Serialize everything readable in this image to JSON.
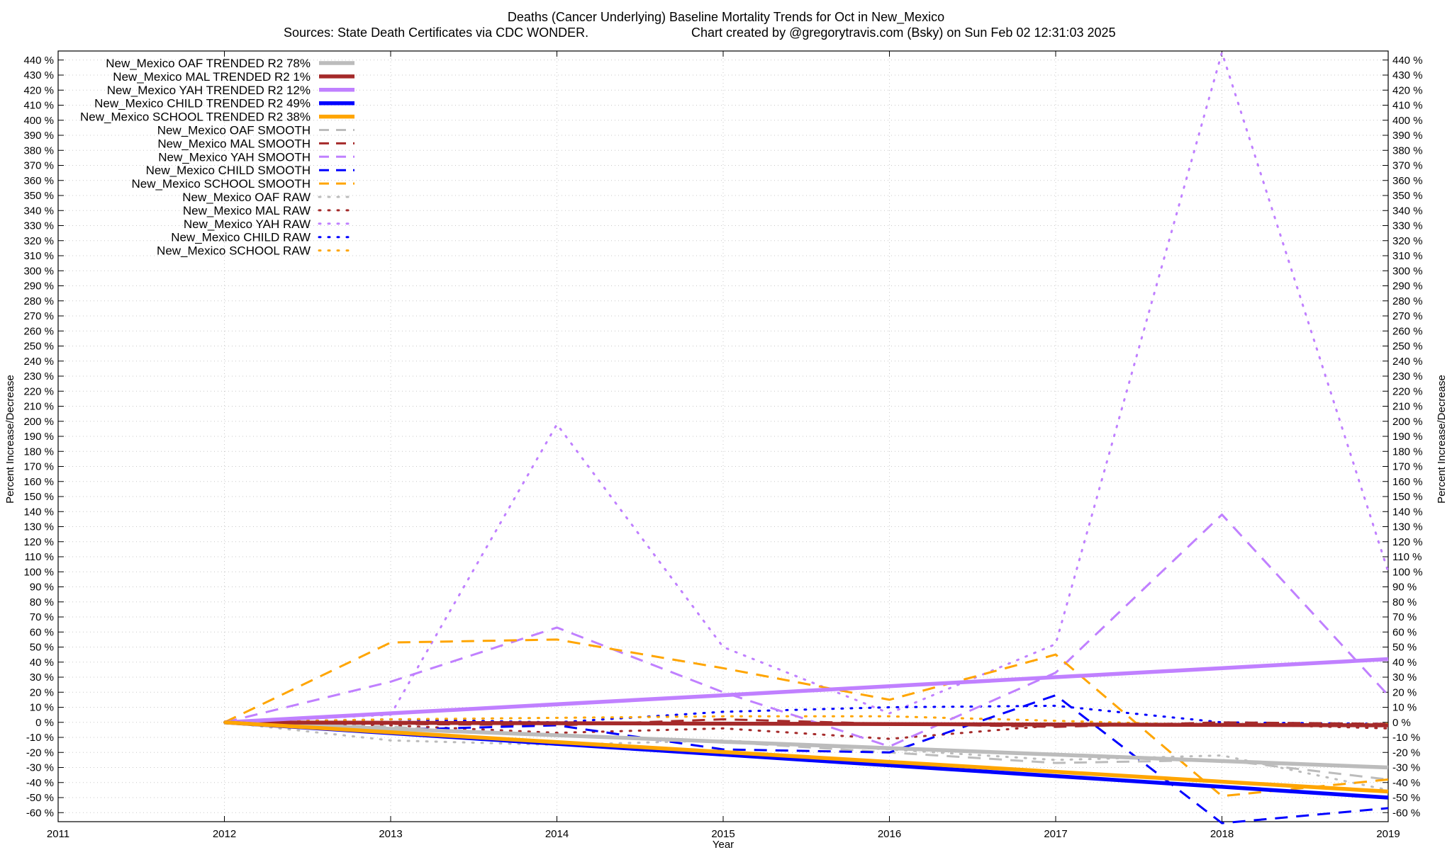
{
  "chart_data": {
    "type": "line",
    "title": "Deaths (Cancer Underlying)  Baseline Mortality Trends for Oct in New_Mexico",
    "subtitle_left": "Sources: State Death Certificates via CDC WONDER.",
    "subtitle_right": "Chart created by @gregorytravis.com (Bsky) on Sun Feb 02 12:31:03 2025",
    "xlabel": "Year",
    "ylabel": "Percent Increase/Decrease",
    "ylabel_right": "Percent Increase/Decrease",
    "xlim": [
      2011,
      2019
    ],
    "ylim": [
      -66,
      446
    ],
    "x_ticks": [
      "2011",
      "2012",
      "2013",
      "2014",
      "2015",
      "2016",
      "2017",
      "2018",
      "2019"
    ],
    "y_ticks": [
      "440 %",
      "430 %",
      "420 %",
      "410 %",
      "400 %",
      "390 %",
      "380 %",
      "370 %",
      "360 %",
      "350 %",
      "340 %",
      "330 %",
      "320 %",
      "310 %",
      "300 %",
      "290 %",
      "280 %",
      "270 %",
      "260 %",
      "250 %",
      "240 %",
      "230 %",
      "220 %",
      "210 %",
      "200 %",
      "190 %",
      "180 %",
      "170 %",
      "160 %",
      "150 %",
      "140 %",
      "130 %",
      "120 %",
      "110 %",
      "100 %",
      "90 %",
      "80 %",
      "70 %",
      "60 %",
      "50 %",
      "40 %",
      "30 %",
      "20 %",
      "10 %",
      "0 %",
      "-10 %",
      "-20 %",
      "-30 %",
      "-40 %",
      "-50 %",
      "-60 %"
    ],
    "legend_position": "top-left",
    "grid": true,
    "series": [
      {
        "name": "New_Mexico OAF TRENDED R2  78%",
        "style": "solid",
        "color": "#bcbcbc",
        "x": [
          2012,
          2019
        ],
        "y": [
          0,
          -30
        ]
      },
      {
        "name": "New_Mexico MAL TRENDED R2   1%",
        "style": "solid",
        "color": "#a52a2a",
        "x": [
          2012,
          2019
        ],
        "y": [
          0,
          -2
        ]
      },
      {
        "name": "New_Mexico YAH TRENDED R2  12%",
        "style": "solid",
        "color": "#c080ff",
        "x": [
          2012,
          2019
        ],
        "y": [
          0,
          42
        ]
      },
      {
        "name": "New_Mexico CHILD TRENDED R2  49%",
        "style": "solid",
        "color": "#0000ff",
        "x": [
          2012,
          2019
        ],
        "y": [
          0,
          -50
        ]
      },
      {
        "name": "New_Mexico SCHOOL TRENDED R2  38%",
        "style": "solid",
        "color": "#ffa500",
        "x": [
          2012,
          2019
        ],
        "y": [
          0,
          -46
        ]
      },
      {
        "name": "New_Mexico OAF SMOOTH",
        "style": "dash",
        "color": "#bcbcbc",
        "x": [
          2012,
          2013,
          2014,
          2015,
          2016,
          2017,
          2018,
          2019
        ],
        "y": [
          0,
          -3,
          -9,
          -13,
          -20,
          -27,
          -25,
          -38
        ]
      },
      {
        "name": "New_Mexico MAL SMOOTH",
        "style": "dash",
        "color": "#a52a2a",
        "x": [
          2012,
          2013,
          2014,
          2015,
          2016,
          2017,
          2018,
          2019
        ],
        "y": [
          0,
          -1,
          -2,
          2,
          -1,
          -3,
          0,
          -1
        ]
      },
      {
        "name": "New_Mexico YAH SMOOTH",
        "style": "dash",
        "color": "#c080ff",
        "x": [
          2012,
          2013,
          2014,
          2015,
          2016,
          2017,
          2018,
          2019
        ],
        "y": [
          0,
          27,
          63,
          20,
          -16,
          33,
          138,
          18
        ]
      },
      {
        "name": "New_Mexico CHILD SMOOTH",
        "style": "dash",
        "color": "#0000ff",
        "x": [
          2012,
          2013,
          2014,
          2015,
          2016,
          2017,
          2018,
          2019
        ],
        "y": [
          0,
          -5,
          -2,
          -18,
          -20,
          18,
          -67,
          -57
        ]
      },
      {
        "name": "New_Mexico SCHOOL SMOOTH",
        "style": "dash",
        "color": "#ffa500",
        "x": [
          2012,
          2013,
          2014,
          2015,
          2016,
          2017,
          2018,
          2019
        ],
        "y": [
          0,
          53,
          55,
          36,
          15,
          45,
          -49,
          -38
        ]
      },
      {
        "name": "New_Mexico OAF RAW",
        "style": "dot",
        "color": "#bcbcbc",
        "x": [
          2012,
          2013,
          2014,
          2015,
          2016,
          2017,
          2018,
          2019
        ],
        "y": [
          0,
          -12,
          -15,
          -12,
          -18,
          -25,
          -22,
          -45
        ]
      },
      {
        "name": "New_Mexico MAL RAW",
        "style": "dot",
        "color": "#a52a2a",
        "x": [
          2012,
          2013,
          2014,
          2015,
          2016,
          2017,
          2018,
          2019
        ],
        "y": [
          0,
          -2,
          -7,
          -4,
          -11,
          -2,
          -1,
          -4
        ]
      },
      {
        "name": "New_Mexico YAH RAW",
        "style": "dot",
        "color": "#c080ff",
        "x": [
          2012,
          2013,
          2014,
          2015,
          2016,
          2017,
          2018,
          2019
        ],
        "y": [
          0,
          5,
          198,
          50,
          6,
          52,
          445,
          100
        ]
      },
      {
        "name": "New_Mexico CHILD RAW",
        "style": "dot",
        "color": "#0000ff",
        "x": [
          2012,
          2013,
          2014,
          2015,
          2016,
          2017,
          2018,
          2019
        ],
        "y": [
          0,
          2,
          0,
          7,
          10,
          11,
          0,
          -1
        ]
      },
      {
        "name": "New_Mexico SCHOOL RAW",
        "style": "dot",
        "color": "#ffa500",
        "x": [
          2012,
          2013,
          2014,
          2015,
          2016,
          2017,
          2018,
          2019
        ],
        "y": [
          0,
          2,
          3,
          4,
          4,
          1,
          -2,
          -1
        ]
      }
    ]
  }
}
